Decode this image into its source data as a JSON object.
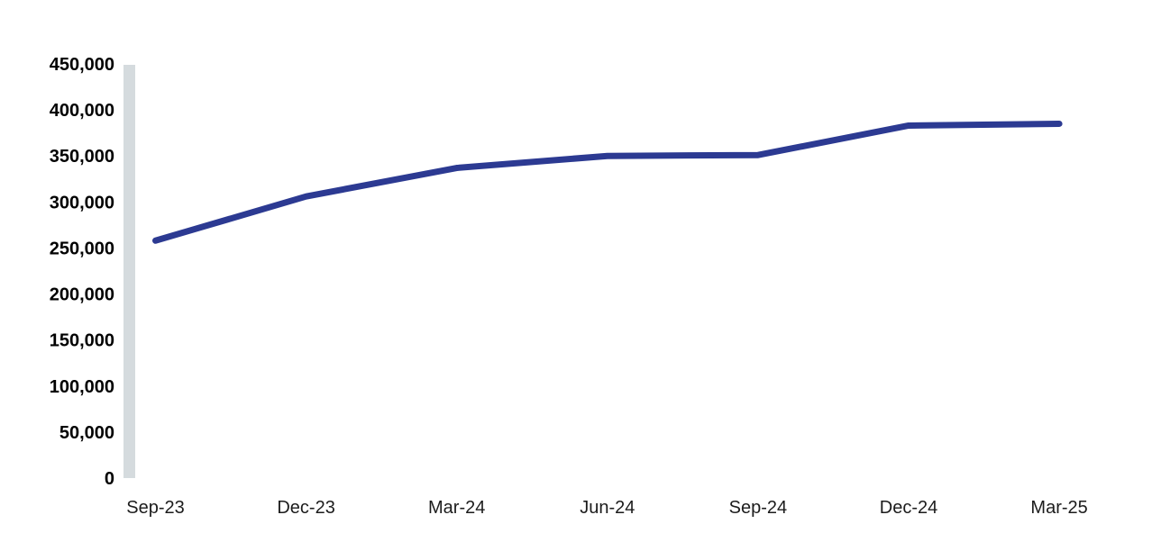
{
  "chart_data": {
    "type": "line",
    "title": "",
    "xlabel": "",
    "ylabel": "",
    "categories": [
      "Sep-23",
      "Dec-23",
      "Mar-24",
      "Jun-24",
      "Sep-24",
      "Dec-24",
      "Mar-25"
    ],
    "series": [
      {
        "name": "value",
        "values": [
          258000,
          306000,
          337000,
          350000,
          351000,
          383000,
          385000
        ]
      }
    ],
    "ylim": [
      0,
      450000
    ],
    "y_ticks": [
      {
        "value": 0,
        "label": "0"
      },
      {
        "value": 50000,
        "label": "50,000"
      },
      {
        "value": 100000,
        "label": "100,000"
      },
      {
        "value": 150000,
        "label": "150,000"
      },
      {
        "value": 200000,
        "label": "200,000"
      },
      {
        "value": 250000,
        "label": "250,000"
      },
      {
        "value": 300000,
        "label": "300,000"
      },
      {
        "value": 350000,
        "label": "350,000"
      },
      {
        "value": 400000,
        "label": "400,000"
      },
      {
        "value": 450000,
        "label": "450,000"
      }
    ],
    "grid": false,
    "legend": false,
    "colors": {
      "line": "#2c3a92",
      "axis_bar": "#d5dbde",
      "y_tick_text": "#000000",
      "x_tick_text": "#1c1c1c",
      "background": "#ffffff"
    }
  }
}
